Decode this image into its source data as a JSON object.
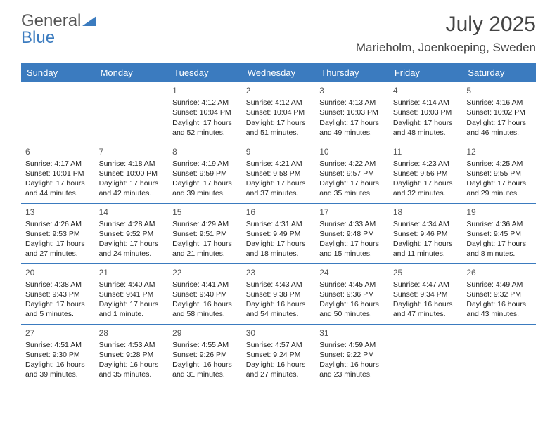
{
  "logo": {
    "part1": "General",
    "part2": "Blue"
  },
  "title": "July 2025",
  "location": "Marieholm, Joenkoeping, Sweden",
  "colors": {
    "header_bg": "#3b7bbf",
    "header_fg": "#ffffff",
    "border": "#3b7bbf",
    "text": "#222222",
    "title_color": "#444444"
  },
  "weekdays": [
    "Sunday",
    "Monday",
    "Tuesday",
    "Wednesday",
    "Thursday",
    "Friday",
    "Saturday"
  ],
  "weeks": [
    [
      null,
      null,
      {
        "n": "1",
        "sr": "Sunrise: 4:12 AM",
        "ss": "Sunset: 10:04 PM",
        "dl": "Daylight: 17 hours and 52 minutes."
      },
      {
        "n": "2",
        "sr": "Sunrise: 4:12 AM",
        "ss": "Sunset: 10:04 PM",
        "dl": "Daylight: 17 hours and 51 minutes."
      },
      {
        "n": "3",
        "sr": "Sunrise: 4:13 AM",
        "ss": "Sunset: 10:03 PM",
        "dl": "Daylight: 17 hours and 49 minutes."
      },
      {
        "n": "4",
        "sr": "Sunrise: 4:14 AM",
        "ss": "Sunset: 10:03 PM",
        "dl": "Daylight: 17 hours and 48 minutes."
      },
      {
        "n": "5",
        "sr": "Sunrise: 4:16 AM",
        "ss": "Sunset: 10:02 PM",
        "dl": "Daylight: 17 hours and 46 minutes."
      }
    ],
    [
      {
        "n": "6",
        "sr": "Sunrise: 4:17 AM",
        "ss": "Sunset: 10:01 PM",
        "dl": "Daylight: 17 hours and 44 minutes."
      },
      {
        "n": "7",
        "sr": "Sunrise: 4:18 AM",
        "ss": "Sunset: 10:00 PM",
        "dl": "Daylight: 17 hours and 42 minutes."
      },
      {
        "n": "8",
        "sr": "Sunrise: 4:19 AM",
        "ss": "Sunset: 9:59 PM",
        "dl": "Daylight: 17 hours and 39 minutes."
      },
      {
        "n": "9",
        "sr": "Sunrise: 4:21 AM",
        "ss": "Sunset: 9:58 PM",
        "dl": "Daylight: 17 hours and 37 minutes."
      },
      {
        "n": "10",
        "sr": "Sunrise: 4:22 AM",
        "ss": "Sunset: 9:57 PM",
        "dl": "Daylight: 17 hours and 35 minutes."
      },
      {
        "n": "11",
        "sr": "Sunrise: 4:23 AM",
        "ss": "Sunset: 9:56 PM",
        "dl": "Daylight: 17 hours and 32 minutes."
      },
      {
        "n": "12",
        "sr": "Sunrise: 4:25 AM",
        "ss": "Sunset: 9:55 PM",
        "dl": "Daylight: 17 hours and 29 minutes."
      }
    ],
    [
      {
        "n": "13",
        "sr": "Sunrise: 4:26 AM",
        "ss": "Sunset: 9:53 PM",
        "dl": "Daylight: 17 hours and 27 minutes."
      },
      {
        "n": "14",
        "sr": "Sunrise: 4:28 AM",
        "ss": "Sunset: 9:52 PM",
        "dl": "Daylight: 17 hours and 24 minutes."
      },
      {
        "n": "15",
        "sr": "Sunrise: 4:29 AM",
        "ss": "Sunset: 9:51 PM",
        "dl": "Daylight: 17 hours and 21 minutes."
      },
      {
        "n": "16",
        "sr": "Sunrise: 4:31 AM",
        "ss": "Sunset: 9:49 PM",
        "dl": "Daylight: 17 hours and 18 minutes."
      },
      {
        "n": "17",
        "sr": "Sunrise: 4:33 AM",
        "ss": "Sunset: 9:48 PM",
        "dl": "Daylight: 17 hours and 15 minutes."
      },
      {
        "n": "18",
        "sr": "Sunrise: 4:34 AM",
        "ss": "Sunset: 9:46 PM",
        "dl": "Daylight: 17 hours and 11 minutes."
      },
      {
        "n": "19",
        "sr": "Sunrise: 4:36 AM",
        "ss": "Sunset: 9:45 PM",
        "dl": "Daylight: 17 hours and 8 minutes."
      }
    ],
    [
      {
        "n": "20",
        "sr": "Sunrise: 4:38 AM",
        "ss": "Sunset: 9:43 PM",
        "dl": "Daylight: 17 hours and 5 minutes."
      },
      {
        "n": "21",
        "sr": "Sunrise: 4:40 AM",
        "ss": "Sunset: 9:41 PM",
        "dl": "Daylight: 17 hours and 1 minute."
      },
      {
        "n": "22",
        "sr": "Sunrise: 4:41 AM",
        "ss": "Sunset: 9:40 PM",
        "dl": "Daylight: 16 hours and 58 minutes."
      },
      {
        "n": "23",
        "sr": "Sunrise: 4:43 AM",
        "ss": "Sunset: 9:38 PM",
        "dl": "Daylight: 16 hours and 54 minutes."
      },
      {
        "n": "24",
        "sr": "Sunrise: 4:45 AM",
        "ss": "Sunset: 9:36 PM",
        "dl": "Daylight: 16 hours and 50 minutes."
      },
      {
        "n": "25",
        "sr": "Sunrise: 4:47 AM",
        "ss": "Sunset: 9:34 PM",
        "dl": "Daylight: 16 hours and 47 minutes."
      },
      {
        "n": "26",
        "sr": "Sunrise: 4:49 AM",
        "ss": "Sunset: 9:32 PM",
        "dl": "Daylight: 16 hours and 43 minutes."
      }
    ],
    [
      {
        "n": "27",
        "sr": "Sunrise: 4:51 AM",
        "ss": "Sunset: 9:30 PM",
        "dl": "Daylight: 16 hours and 39 minutes."
      },
      {
        "n": "28",
        "sr": "Sunrise: 4:53 AM",
        "ss": "Sunset: 9:28 PM",
        "dl": "Daylight: 16 hours and 35 minutes."
      },
      {
        "n": "29",
        "sr": "Sunrise: 4:55 AM",
        "ss": "Sunset: 9:26 PM",
        "dl": "Daylight: 16 hours and 31 minutes."
      },
      {
        "n": "30",
        "sr": "Sunrise: 4:57 AM",
        "ss": "Sunset: 9:24 PM",
        "dl": "Daylight: 16 hours and 27 minutes."
      },
      {
        "n": "31",
        "sr": "Sunrise: 4:59 AM",
        "ss": "Sunset: 9:22 PM",
        "dl": "Daylight: 16 hours and 23 minutes."
      },
      null,
      null
    ]
  ]
}
